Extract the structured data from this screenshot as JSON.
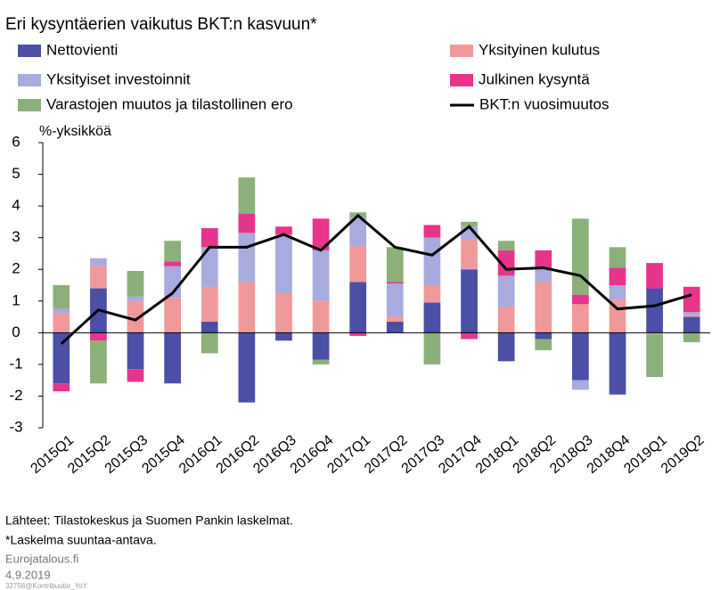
{
  "chart_data": {
    "type": "bar",
    "title": "Eri kysyntäerien vaikutus BKT:n kasvuun*",
    "y_axis_label": "%-yksikköä",
    "categories": [
      "2015Q1",
      "2015Q2",
      "2015Q3",
      "2015Q4",
      "2016Q1",
      "2016Q2",
      "2016Q3",
      "2016Q4",
      "2017Q1",
      "2017Q2",
      "2017Q3",
      "2017Q4",
      "2018Q1",
      "2018Q2",
      "2018Q3",
      "2018Q4",
      "2019Q1",
      "2019Q2"
    ],
    "series": [
      {
        "name": "Nettovienti",
        "color": "#4b4fa6",
        "values": [
          -1.6,
          1.4,
          -1.15,
          -1.6,
          0.35,
          -2.2,
          -0.25,
          -0.85,
          1.6,
          0.35,
          0.95,
          2.0,
          -0.9,
          -0.2,
          -1.5,
          -1.95,
          1.4,
          0.5
        ]
      },
      {
        "name": "Yksityinen kulutus",
        "color": "#f0999a",
        "values": [
          0.6,
          0.7,
          1.0,
          1.1,
          1.1,
          1.6,
          1.25,
          1.0,
          1.15,
          0.15,
          0.55,
          0.95,
          0.8,
          1.6,
          0.9,
          1.05,
          -0.05,
          0.05
        ]
      },
      {
        "name": "Yksityiset investoinnit",
        "color": "#a9aadd",
        "values": [
          0.15,
          0.25,
          0.15,
          1.0,
          1.25,
          1.55,
          1.85,
          1.6,
          0.9,
          1.05,
          1.5,
          0.4,
          1.0,
          0.4,
          -0.3,
          0.45,
          0,
          0.1
        ]
      },
      {
        "name": "Julkinen kysyntä",
        "color": "#e6358a",
        "values": [
          -0.25,
          -0.25,
          -0.4,
          0.15,
          0.6,
          0.6,
          0.25,
          1.0,
          -0.1,
          0.05,
          0.4,
          -0.2,
          0.8,
          0.6,
          0.3,
          0.55,
          0.8,
          0.8
        ]
      },
      {
        "name": "Varastojen muutos ja tilastollinen ero",
        "color": "#8cb07a",
        "values": [
          0.75,
          -1.35,
          0.8,
          0.65,
          -0.65,
          1.15,
          0,
          -0.15,
          0.15,
          1.1,
          -1.0,
          0.15,
          0.3,
          -0.35,
          2.4,
          0.65,
          -1.35,
          -0.3
        ]
      }
    ],
    "line": {
      "name": "BKT:n vuosimuutos",
      "color": "#000000",
      "values": [
        -0.35,
        0.72,
        0.4,
        1.25,
        2.7,
        2.7,
        3.1,
        2.6,
        3.7,
        2.7,
        2.45,
        3.35,
        2.0,
        2.05,
        1.8,
        0.75,
        0.85,
        1.2
      ]
    },
    "ylim": [
      -3,
      6
    ],
    "yticks": [
      -3,
      -2,
      -1,
      0,
      1,
      2,
      3,
      4,
      5,
      6
    ],
    "footnotes": [
      "Lähteet: Tilastokeskus ja Suomen Pankin laskelmat.",
      "*Laskelma suuntaa-antava."
    ],
    "source": "Eurojatalous.fi",
    "date": "4.9.2019",
    "code": "32758@Kontribuutio_YoY"
  }
}
